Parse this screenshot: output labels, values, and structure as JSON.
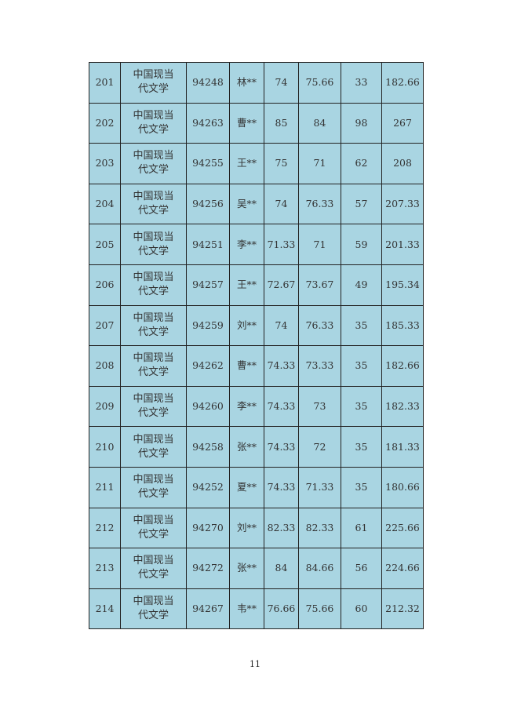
{
  "table": {
    "rows": [
      [
        "201",
        "中国现当代文学",
        "94248",
        "林**",
        "74",
        "75.66",
        "33",
        "182.66"
      ],
      [
        "202",
        "中国现当代文学",
        "94263",
        "曹**",
        "85",
        "84",
        "98",
        "267"
      ],
      [
        "203",
        "中国现当代文学",
        "94255",
        "王**",
        "75",
        "71",
        "62",
        "208"
      ],
      [
        "204",
        "中国现当代文学",
        "94256",
        "吴**",
        "74",
        "76.33",
        "57",
        "207.33"
      ],
      [
        "205",
        "中国现当代文学",
        "94251",
        "李**",
        "71.33",
        "71",
        "59",
        "201.33"
      ],
      [
        "206",
        "中国现当代文学",
        "94257",
        "王**",
        "72.67",
        "73.67",
        "49",
        "195.34"
      ],
      [
        "207",
        "中国现当代文学",
        "94259",
        "刘**",
        "74",
        "76.33",
        "35",
        "185.33"
      ],
      [
        "208",
        "中国现当代文学",
        "94262",
        "曹**",
        "74.33",
        "73.33",
        "35",
        "182.66"
      ],
      [
        "209",
        "中国现当代文学",
        "94260",
        "李**",
        "74.33",
        "73",
        "35",
        "182.33"
      ],
      [
        "210",
        "中国现当代文学",
        "94258",
        "张**",
        "74.33",
        "72",
        "35",
        "181.33"
      ],
      [
        "211",
        "中国现当代文学",
        "94252",
        "夏**",
        "74.33",
        "71.33",
        "35",
        "180.66"
      ],
      [
        "212",
        "中国现当代文学",
        "94270",
        "刘**",
        "82.33",
        "82.33",
        "61",
        "225.66"
      ],
      [
        "213",
        "中国现当代文学",
        "94272",
        "张**",
        "84",
        "84.66",
        "56",
        "224.66"
      ],
      [
        "214",
        "中国现当代文学",
        "94267",
        "韦**",
        "76.66",
        "75.66",
        "60",
        "212.32"
      ]
    ]
  },
  "page_number": "11",
  "colors": {
    "cell_background": "#a9d5e2",
    "border": "#222222"
  }
}
